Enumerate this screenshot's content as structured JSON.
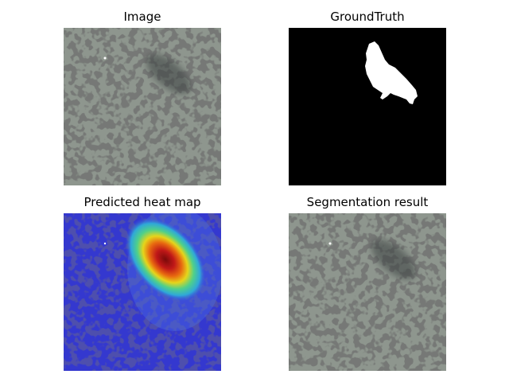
{
  "panels": [
    {
      "title": "Image",
      "icon": "texture-image"
    },
    {
      "title": "GroundTruth",
      "icon": "mask-image"
    },
    {
      "title": "Predicted heat map",
      "icon": "heatmap-image"
    },
    {
      "title": "Segmentation result",
      "icon": "segmentation-image"
    }
  ],
  "colors": {
    "background": "#ffffff",
    "texture_base": "#8e968e",
    "texture_spot": "#2f312f",
    "mask_background": "#000000",
    "mask_foreground": "#ffffff",
    "heat_low": "#2a2ed6",
    "heat_high": "#b01010"
  }
}
